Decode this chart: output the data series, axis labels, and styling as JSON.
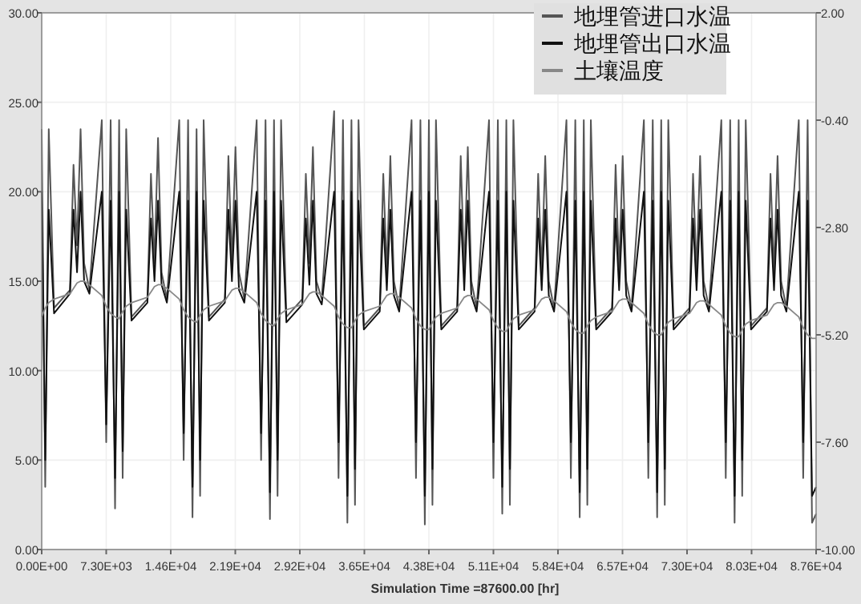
{
  "chart_data": {
    "type": "line",
    "xlabel": "Simulation Time =87600.00 [hr]",
    "xlim": [
      0,
      87600
    ],
    "ylim": [
      0,
      30
    ],
    "y2lim": [
      -10,
      2
    ],
    "xticks": [
      {
        "value": 0,
        "label": "0.00E+00"
      },
      {
        "value": 7300,
        "label": "7.30E+03"
      },
      {
        "value": 14600,
        "label": "1.46E+04"
      },
      {
        "value": 21900,
        "label": "2.19E+04"
      },
      {
        "value": 29200,
        "label": "2.92E+04"
      },
      {
        "value": 36500,
        "label": "3.65E+04"
      },
      {
        "value": 43800,
        "label": "4.38E+04"
      },
      {
        "value": 51100,
        "label": "5.11E+04"
      },
      {
        "value": 58400,
        "label": "5.84E+04"
      },
      {
        "value": 65700,
        "label": "6.57E+04"
      },
      {
        "value": 73000,
        "label": "7.30E+04"
      },
      {
        "value": 80300,
        "label": "8.03E+04"
      },
      {
        "value": 87600,
        "label": "8.76E+04"
      }
    ],
    "yticks": [
      {
        "value": 0,
        "label": "0.00"
      },
      {
        "value": 5,
        "label": "5.00"
      },
      {
        "value": 10,
        "label": "10.00"
      },
      {
        "value": 15,
        "label": "15.00"
      },
      {
        "value": 20,
        "label": "20.00"
      },
      {
        "value": 25,
        "label": "25.00"
      },
      {
        "value": 30,
        "label": "30.00"
      }
    ],
    "y2ticks": [
      {
        "value": -10,
        "label": "-10.00"
      },
      {
        "value": -7.6,
        "label": "-7.60"
      },
      {
        "value": -5.2,
        "label": "-5.20"
      },
      {
        "value": -2.8,
        "label": "-2.80"
      },
      {
        "value": -0.4,
        "label": "-0.40"
      },
      {
        "value": 2,
        "label": "2.00"
      }
    ],
    "grid": true,
    "legend": "top right",
    "x": [
      0,
      400,
      800,
      1400,
      3200,
      3600,
      4000,
      4400,
      4800,
      5400,
      6800,
      7300,
      7800,
      8300,
      8760,
      9160,
      9560,
      10160,
      11960,
      12360,
      12760,
      13160,
      13560,
      14160,
      15560,
      16060,
      16560,
      17060,
      17520,
      17920,
      18320,
      18920,
      20720,
      21120,
      21520,
      21920,
      22320,
      22920,
      24320,
      24820,
      25320,
      25820,
      26280,
      26680,
      27080,
      27680,
      29480,
      29880,
      30280,
      30680,
      31080,
      31680,
      33080,
      33580,
      34080,
      34580,
      35040,
      35440,
      35840,
      36440,
      38240,
      38640,
      39040,
      39440,
      39840,
      40440,
      41840,
      42340,
      42840,
      43340,
      43800,
      44200,
      44600,
      45200,
      47000,
      47400,
      47800,
      48200,
      48600,
      49200,
      50600,
      51100,
      51600,
      52100,
      52560,
      52960,
      53360,
      53960,
      55760,
      56160,
      56560,
      56960,
      57360,
      57960,
      59360,
      59860,
      60360,
      60860,
      61320,
      61720,
      62120,
      62720,
      64520,
      64920,
      65320,
      65720,
      66120,
      66720,
      68120,
      68620,
      69120,
      69620,
      70080,
      70480,
      70880,
      71480,
      73280,
      73680,
      74080,
      74480,
      74880,
      75480,
      76880,
      77380,
      77880,
      78380,
      78840,
      79240,
      79640,
      80240,
      82040,
      82440,
      82840,
      83240,
      83640,
      84240,
      85640,
      86140,
      86640,
      87140,
      87600
    ],
    "series": [
      {
        "name": "地埋管进口水温",
        "color": "#555555",
        "values": [
          23.5,
          3.5,
          23.5,
          13.5,
          14.5,
          21.5,
          17,
          23.5,
          16,
          14.5,
          24,
          6,
          24,
          2.3,
          24,
          4,
          23.5,
          13,
          14,
          21,
          16,
          23,
          15.5,
          14,
          24,
          5,
          24,
          1.8,
          23.5,
          3,
          24,
          13,
          14,
          22,
          16,
          22.5,
          15.5,
          14,
          24,
          5,
          24,
          1.7,
          24,
          3,
          24,
          13,
          14,
          21,
          16,
          22.5,
          15,
          14,
          24.5,
          4,
          24,
          1.5,
          24,
          2.5,
          24,
          12.5,
          13.5,
          21,
          15.5,
          22,
          15,
          13.5,
          24,
          4,
          24,
          1.4,
          24,
          2.5,
          24,
          12.5,
          13.5,
          22,
          15.5,
          22.5,
          15,
          13.5,
          24,
          4,
          24,
          2,
          24,
          2.5,
          24,
          12.5,
          13.5,
          21,
          15.5,
          22,
          15,
          13.5,
          24,
          4,
          24,
          1.8,
          24,
          2.5,
          24,
          12.5,
          13.5,
          21.5,
          15.5,
          22,
          15,
          13.5,
          24,
          4,
          24,
          1.8,
          24,
          2.5,
          24,
          12.5,
          13.5,
          21,
          15.5,
          22,
          15,
          13.5,
          24,
          4,
          24,
          1.5,
          24,
          3,
          24,
          12.5,
          13.5,
          21,
          15.5,
          22,
          15,
          13.5,
          24,
          4,
          24,
          1.5,
          2
        ]
      },
      {
        "name": "地埋管出口水温",
        "color": "#111111",
        "values": [
          20,
          5,
          19,
          13.2,
          14.3,
          19,
          15.5,
          20,
          15,
          14.3,
          20,
          7,
          19.5,
          4,
          20,
          5.5,
          19,
          12.8,
          13.8,
          18.5,
          15,
          19.5,
          14.8,
          13.8,
          20,
          6.5,
          19.5,
          3.5,
          20,
          5,
          19.5,
          12.8,
          13.8,
          19,
          15,
          19.5,
          14.5,
          13.8,
          20,
          6.5,
          19.5,
          3.2,
          20,
          5,
          19.5,
          12.7,
          13.7,
          18.5,
          14.8,
          19.5,
          14.3,
          13.7,
          20,
          6,
          19.5,
          3,
          20,
          4.5,
          19.5,
          12.3,
          13.3,
          18.5,
          14.5,
          19,
          14.2,
          13.3,
          20,
          6,
          19.5,
          3,
          20,
          4.5,
          19.5,
          12.3,
          13.3,
          19,
          14.5,
          19.5,
          14.2,
          13.3,
          20,
          6,
          19.5,
          3.5,
          20,
          4.5,
          19.5,
          12.3,
          13.3,
          18.5,
          14.5,
          19,
          14.2,
          13.3,
          20,
          6,
          19.5,
          3.2,
          20,
          4.5,
          19.5,
          12.3,
          13.3,
          18.5,
          14.5,
          19,
          14.2,
          13.3,
          20,
          6,
          19.5,
          3.2,
          20,
          4.5,
          19.5,
          12.3,
          13.3,
          18.5,
          14.5,
          19,
          14.2,
          13.3,
          20,
          6,
          19.5,
          3,
          20,
          5,
          19.5,
          12.3,
          13.3,
          18.5,
          14.5,
          19,
          14.2,
          13.3,
          20,
          6,
          19.5,
          3,
          3.5
        ]
      },
      {
        "name": "土壤温度",
        "color": "#888888",
        "values": [
          13,
          13.5,
          13.8,
          14,
          14.3,
          14.6,
          14.9,
          15,
          15,
          14.8,
          14.2,
          13.6,
          13.2,
          13,
          12.9,
          13.3,
          13.6,
          13.8,
          14.1,
          14.4,
          14.7,
          14.8,
          14.8,
          14.6,
          14,
          13.4,
          13,
          12.8,
          12.7,
          13.1,
          13.4,
          13.6,
          13.9,
          14.2,
          14.5,
          14.6,
          14.6,
          14.4,
          13.8,
          13.2,
          12.8,
          12.6,
          12.5,
          12.9,
          13.2,
          13.4,
          13.7,
          14,
          14.3,
          14.4,
          14.4,
          14.2,
          13.6,
          13,
          12.6,
          12.4,
          12.4,
          12.8,
          13.1,
          13.3,
          13.6,
          13.9,
          14.2,
          14.3,
          14.3,
          14.1,
          13.5,
          12.9,
          12.5,
          12.3,
          12.3,
          12.7,
          13,
          13.2,
          13.5,
          13.8,
          14.1,
          14.2,
          14.2,
          14,
          13.4,
          12.8,
          12.4,
          12.2,
          12.2,
          12.6,
          12.9,
          13.1,
          13.4,
          13.7,
          14,
          14.1,
          14.1,
          13.9,
          13.3,
          12.7,
          12.3,
          12.1,
          12.1,
          12.5,
          12.8,
          13,
          13.3,
          13.6,
          13.9,
          14,
          14,
          13.8,
          13.2,
          12.6,
          12.2,
          12,
          12,
          12.4,
          12.7,
          12.9,
          13.2,
          13.5,
          13.8,
          13.9,
          13.9,
          13.7,
          13.1,
          12.5,
          12.1,
          11.9,
          11.9,
          12.3,
          12.6,
          12.8,
          13.1,
          13.4,
          13.7,
          13.8,
          13.8,
          13.6,
          13,
          12.4,
          12,
          11.8,
          11.8
        ]
      }
    ]
  }
}
